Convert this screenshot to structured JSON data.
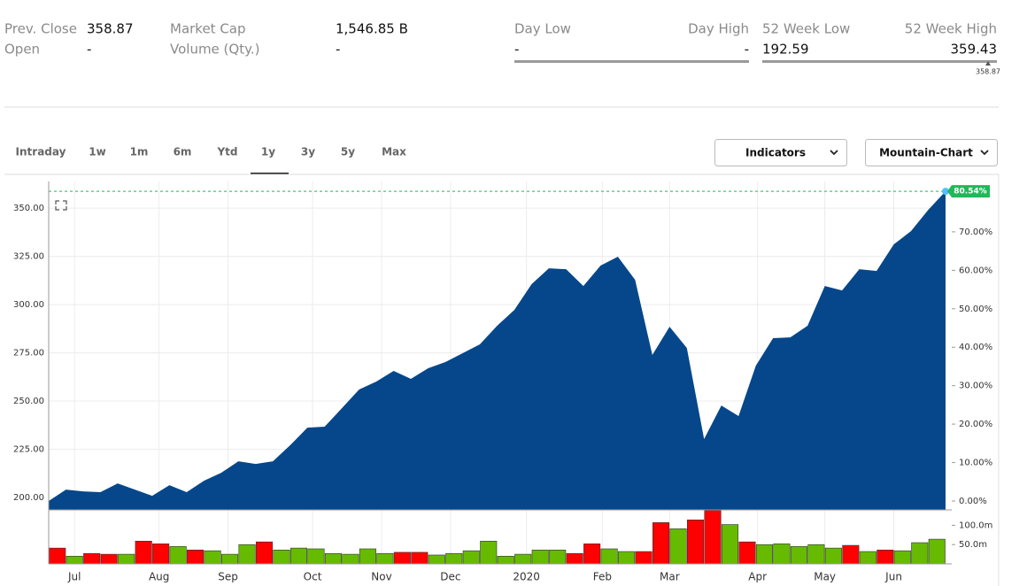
{
  "quote": {
    "prev_close_label": "Prev. Close",
    "prev_close": "358.87",
    "open_label": "Open",
    "open": "-",
    "market_cap_label": "Market Cap",
    "market_cap": "1,546.85 B",
    "volume_label": "Volume (Qty.)",
    "volume": "-",
    "day_low_label": "Day Low",
    "day_high_label": "Day High",
    "day_low": "-",
    "day_high": "-",
    "week52_low_label": "52 Week Low",
    "week52_high_label": "52 Week High",
    "week52_low": "192.59",
    "week52_high": "359.43",
    "week52_current": "358.87"
  },
  "tabs": [
    "Intraday",
    "1w",
    "1m",
    "6m",
    "Ytd",
    "1y",
    "3y",
    "5y",
    "Max"
  ],
  "buttons": [
    "Indicators",
    "Mountain-Chart"
  ],
  "chart_data": [
    {
      "type": "area",
      "color": "#05478a",
      "grid": true,
      "values": [
        198.2,
        204.1,
        203.2,
        202.8,
        207.3,
        204.1,
        200.9,
        206.4,
        202.8,
        208.7,
        212.8,
        218.8,
        217.4,
        218.8,
        227.1,
        236.2,
        236.7,
        246.3,
        256.0,
        260.1,
        265.6,
        261.5,
        267.0,
        270.2,
        274.8,
        279.4,
        289.0,
        297.2,
        310.6,
        318.8,
        318.3,
        309.6,
        320.2,
        324.8,
        312.8,
        273.9,
        288.5,
        277.5,
        230.3,
        247.7,
        242.2,
        268.3,
        282.6,
        283.0,
        289.0,
        309.6,
        307.3,
        318.3,
        317.4,
        331.2,
        338.1,
        349.1,
        358.7
      ],
      "xlim": [
        0,
        52
      ],
      "xticks": [
        {
          "value": 1.5,
          "label": "Jul"
        },
        {
          "value": 6.4,
          "label": "Aug"
        },
        {
          "value": 10.4,
          "label": "Sep"
        },
        {
          "value": 15.3,
          "label": "Oct"
        },
        {
          "value": 19.3,
          "label": "Nov"
        },
        {
          "value": 23.3,
          "label": "Dec"
        },
        {
          "value": 27.7,
          "label": "2020"
        },
        {
          "value": 32.1,
          "label": "Feb"
        },
        {
          "value": 36.0,
          "label": "Mar"
        },
        {
          "value": 41.1,
          "label": "Apr"
        },
        {
          "value": 45.0,
          "label": "May"
        },
        {
          "value": 49.0,
          "label": "Jun"
        }
      ],
      "ylim": [
        193.6,
        363.8
      ],
      "yticks": [
        {
          "value": 200,
          "label": "200.00"
        },
        {
          "value": 225,
          "label": "225.00"
        },
        {
          "value": 250,
          "label": "250.00"
        },
        {
          "value": 275,
          "label": "275.00"
        },
        {
          "value": 300,
          "label": "300.00"
        },
        {
          "value": 325,
          "label": "325.00"
        },
        {
          "value": 350,
          "label": "350.00"
        }
      ],
      "y2lim": [
        -2.3,
        83.1
      ],
      "y2ticks": [
        {
          "value": 0,
          "label": "0.00%"
        },
        {
          "value": 10,
          "label": "10.00%"
        },
        {
          "value": 20,
          "label": "20.00%"
        },
        {
          "value": 30,
          "label": "30.00%"
        },
        {
          "value": 40,
          "label": "40.00%"
        },
        {
          "value": 50,
          "label": "50.00%"
        },
        {
          "value": 60,
          "label": "60.00%"
        },
        {
          "value": 70,
          "label": "70.00%"
        }
      ],
      "marker": {
        "value": 80.54,
        "label": "80.54%"
      },
      "marker_color": "#1fb85a"
    },
    {
      "type": "bar",
      "values": [
        41,
        20,
        27,
        25,
        25,
        59,
        52,
        45,
        36,
        34,
        25,
        50,
        57,
        36,
        41,
        39,
        27,
        25,
        39,
        27,
        30,
        30,
        23,
        27,
        34,
        59,
        20,
        25,
        36,
        36,
        27,
        52,
        39,
        32,
        32,
        107,
        91,
        114,
        139,
        102,
        57,
        50,
        52,
        45,
        50,
        41,
        48,
        32,
        36,
        34,
        55,
        64
      ],
      "colors": [
        "#ff0000",
        "#66bb00",
        "#ff0000",
        "#ff0000",
        "#66bb00",
        "#ff0000",
        "#ff0000",
        "#66bb00",
        "#ff0000",
        "#66bb00",
        "#66bb00",
        "#66bb00",
        "#ff0000",
        "#66bb00",
        "#66bb00",
        "#66bb00",
        "#66bb00",
        "#66bb00",
        "#66bb00",
        "#66bb00",
        "#ff0000",
        "#ff0000",
        "#66bb00",
        "#66bb00",
        "#66bb00",
        "#66bb00",
        "#66bb00",
        "#66bb00",
        "#66bb00",
        "#66bb00",
        "#ff0000",
        "#ff0000",
        "#66bb00",
        "#66bb00",
        "#ff0000",
        "#ff0000",
        "#66bb00",
        "#ff0000",
        "#ff0000",
        "#66bb00",
        "#ff0000",
        "#66bb00",
        "#66bb00",
        "#66bb00",
        "#66bb00",
        "#66bb00",
        "#ff0000",
        "#66bb00",
        "#ff0000",
        "#66bb00",
        "#66bb00",
        "#66bb00"
      ],
      "ylim": [
        0,
        140
      ],
      "yticks": [
        {
          "value": 50,
          "label": "50.0m"
        },
        {
          "value": 100,
          "label": "100.0m"
        }
      ]
    }
  ]
}
